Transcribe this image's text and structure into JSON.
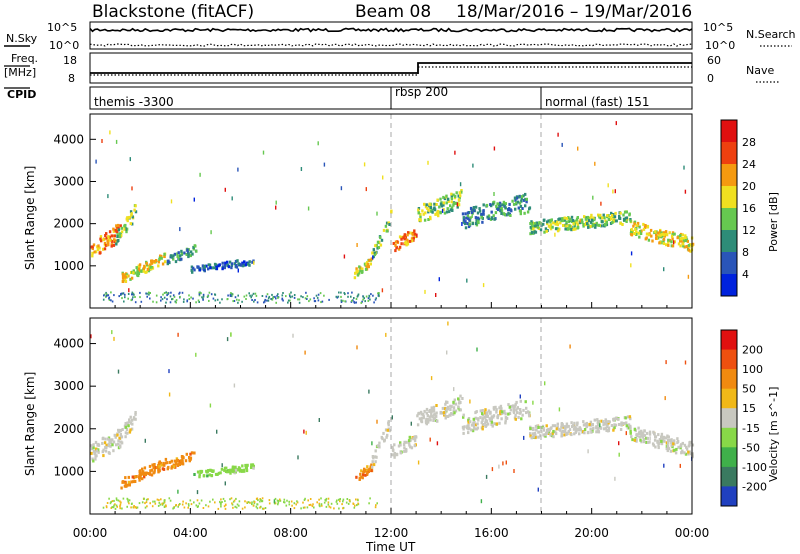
{
  "header": {
    "title": "Blackstone (fitACF)",
    "beam": "Beam 08",
    "dates": "18/Mar/2016 – 19/Mar/2016"
  },
  "top_panels": {
    "nsky_label": "N.Sky",
    "nsky_ticks": [
      "10^5",
      "10^0"
    ],
    "nsearch_label": "N.Search",
    "nsearch_ticks": [
      "10^5",
      "10^0"
    ],
    "freq_label_1": "Freq.",
    "freq_label_2": "[MHz]",
    "freq_ticks": [
      "18",
      "8"
    ],
    "nave_label": "Nave",
    "nave_ticks": [
      "60",
      "0"
    ],
    "cpid_label": "CPID",
    "cpid_segments": [
      {
        "label": "themis -3300",
        "start_hour": 0
      },
      {
        "label": "rbsp 200",
        "start_hour": 12
      },
      {
        "label": "normal (fast) 151",
        "start_hour": 18
      }
    ]
  },
  "chart_data": [
    {
      "type": "heatmap",
      "name": "power",
      "ylabel": "Slant Range [km]",
      "xlabel": "Time UT",
      "xlim": [
        0,
        24
      ],
      "ylim": [
        0,
        4600
      ],
      "yticks": [
        "1000",
        "2000",
        "3000",
        "4000"
      ],
      "xticks": [
        "00:00",
        "04:00",
        "08:00",
        "12:00",
        "16:00",
        "20:00",
        "00:00"
      ],
      "colorbar_label": "Power [dB]",
      "colorbar_ticks": [
        "28",
        "24",
        "20",
        "16",
        "12",
        "8",
        "4"
      ],
      "colors": [
        "#0022dd",
        "#2a55b8",
        "#2e8c78",
        "#66c850",
        "#f0e020",
        "#f59a10",
        "#ee4010",
        "#e01010"
      ]
    },
    {
      "type": "heatmap",
      "name": "velocity",
      "ylabel": "Slant Range [km]",
      "xlabel": "Time UT",
      "xlim": [
        0,
        24
      ],
      "ylim": [
        0,
        4600
      ],
      "yticks": [
        "1000",
        "2000",
        "3000",
        "4000"
      ],
      "xticks": [
        "00:00",
        "04:00",
        "08:00",
        "12:00",
        "16:00",
        "20:00",
        "00:00"
      ],
      "colorbar_label": "Velocity [m s^-1]",
      "colorbar_ticks": [
        "200",
        "100",
        "50",
        "15",
        "-15",
        "-50",
        "-100",
        "-200"
      ],
      "colors": [
        "#2040c0",
        "#3a7a60",
        "#3fb04a",
        "#88d848",
        "#c8c8c0",
        "#f0b818",
        "#f08a10",
        "#ee5010",
        "#e01010"
      ]
    }
  ],
  "xaxis": {
    "ticks": [
      "00:00",
      "04:00",
      "08:00",
      "12:00",
      "16:00",
      "20:00",
      "00:00"
    ],
    "label": "Time UT"
  }
}
